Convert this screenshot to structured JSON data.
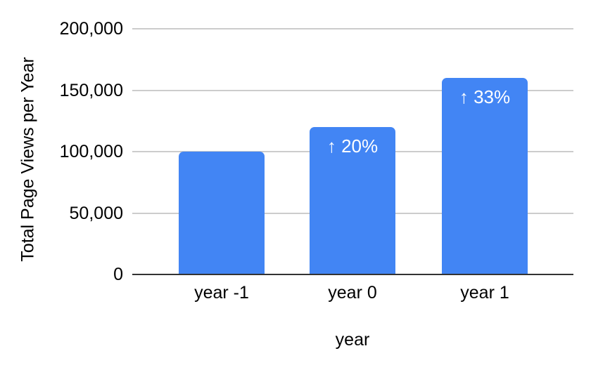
{
  "chart_data": {
    "type": "bar",
    "title": "",
    "xlabel": "year",
    "ylabel": "Total Page Views per Year",
    "categories": [
      "year -1",
      "year 0",
      "year 1"
    ],
    "values": [
      100000,
      120000,
      160000
    ],
    "bar_annotations": [
      "",
      "↑ 20%",
      "↑ 33%"
    ],
    "ylim": [
      0,
      200000
    ],
    "yticks": [
      {
        "value": 0,
        "label": "0"
      },
      {
        "value": 50000,
        "label": "50,000"
      },
      {
        "value": 100000,
        "label": "100,000"
      },
      {
        "value": 150000,
        "label": "150,000"
      },
      {
        "value": 200000,
        "label": "200,000"
      }
    ],
    "grid": "horizontal",
    "legend": "none",
    "colors": {
      "bar": "#4285F4",
      "annotation_text": "#FFFFFF",
      "gridline": "#CCCCCC",
      "axis_line": "#333333",
      "text": "#000000"
    }
  }
}
